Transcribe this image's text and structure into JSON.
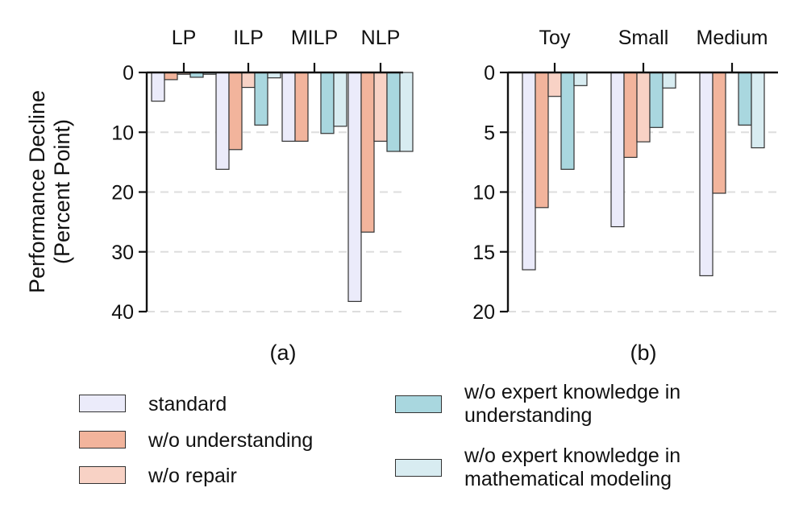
{
  "chart_data": [
    {
      "type": "bar",
      "panel_label": "(a)",
      "ylabel": "Performance Decline\n(Percent Point)",
      "categories": [
        "LP",
        "ILP",
        "MILP",
        "NLP"
      ],
      "ylim": [
        0,
        40
      ],
      "yticks": [
        "0",
        "10",
        "20",
        "30",
        "40"
      ],
      "y_inverted": true,
      "grid": "horizontal dashed",
      "series": [
        {
          "name": "standard",
          "values": [
            4.8,
            16.2,
            11.5,
            38.3
          ]
        },
        {
          "name": "w/o understanding",
          "values": [
            1.2,
            12.9,
            11.5,
            26.7
          ]
        },
        {
          "name": "w/o repair",
          "values": [
            0.3,
            2.5,
            0,
            11.5
          ]
        },
        {
          "name": "w/o expert knowledge in understanding",
          "values": [
            0.8,
            8.8,
            10.2,
            13.2
          ]
        },
        {
          "name": "w/o expert knowledge in mathematical modeling",
          "values": [
            0.3,
            0.9,
            9.0,
            13.2
          ]
        }
      ]
    },
    {
      "type": "bar",
      "panel_label": "(b)",
      "categories": [
        "Toy",
        "Small",
        "Medium"
      ],
      "ylim": [
        0,
        20
      ],
      "yticks": [
        "0",
        "5",
        "10",
        "15",
        "20"
      ],
      "y_inverted": true,
      "grid": "horizontal dashed",
      "series": [
        {
          "name": "standard",
          "values": [
            16.5,
            12.9,
            17.0
          ]
        },
        {
          "name": "w/o understanding",
          "values": [
            11.3,
            7.1,
            10.1
          ]
        },
        {
          "name": "w/o repair",
          "values": [
            2.0,
            5.8,
            0
          ]
        },
        {
          "name": "w/o expert knowledge in understanding",
          "values": [
            8.1,
            4.6,
            4.4
          ]
        },
        {
          "name": "w/o expert knowledge in mathematical modeling",
          "values": [
            1.1,
            1.3,
            6.3
          ]
        }
      ]
    }
  ],
  "legend": [
    {
      "label": "standard",
      "color": "#ebebfa"
    },
    {
      "label": "w/o understanding",
      "color": "#f2b49c"
    },
    {
      "label": "w/o repair",
      "color": "#f8d2c5"
    },
    {
      "label": "w/o expert knowledge in\nunderstanding",
      "color": "#a9d7df"
    },
    {
      "label": "w/o expert knowledge in\nmathematical modeling",
      "color": "#d8ecf1"
    }
  ],
  "colors": [
    "#ebebfa",
    "#f2b49c",
    "#f8d2c5",
    "#a9d7df",
    "#d8ecf1"
  ]
}
